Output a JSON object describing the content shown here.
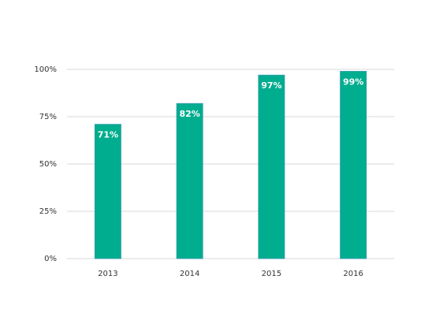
{
  "chart_data": {
    "type": "bar",
    "categories": [
      "2013",
      "2014",
      "2015",
      "2016"
    ],
    "values": [
      71,
      82,
      97,
      99
    ],
    "value_labels": [
      "71%",
      "82%",
      "97%",
      "99%"
    ],
    "color": "#00ad8e",
    "ylim": [
      0,
      100
    ],
    "yticks": [
      {
        "value": 0,
        "label": "0%"
      },
      {
        "value": 25,
        "label": "25%"
      },
      {
        "value": 50,
        "label": "50%"
      },
      {
        "value": 75,
        "label": "75%"
      },
      {
        "value": 100,
        "label": "100%"
      }
    ],
    "grid": true
  }
}
